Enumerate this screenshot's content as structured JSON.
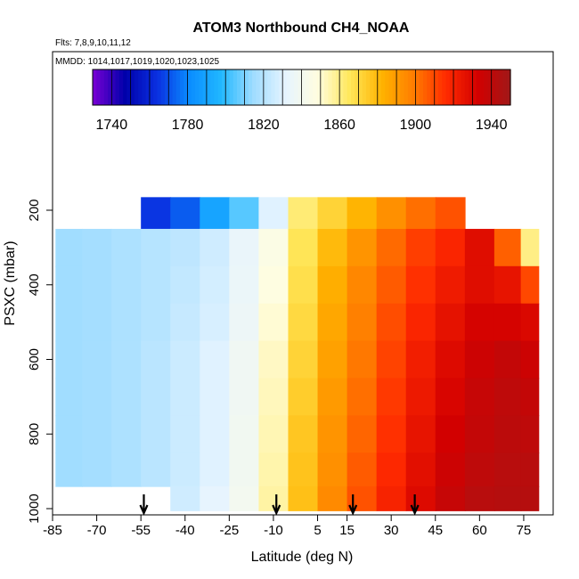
{
  "chart_data": {
    "type": "heatmap",
    "title": "ATOM3 Northbound CH4_NOAA",
    "annotations": [
      "Flts: 7,8,9,10,11,12",
      "MMDD: 1014,1017,1019,1020,1023,1025"
    ],
    "xlabel": "Latitude (deg N)",
    "ylabel": "PSXC (mbar)",
    "xlim": [
      -85,
      85
    ],
    "ylim": [
      1000,
      100
    ],
    "x_ticks": [
      -85,
      -70,
      -55,
      -40,
      -25,
      -10,
      5,
      15,
      30,
      45,
      60,
      75
    ],
    "y_ticks": [
      200,
      400,
      600,
      800,
      1000
    ],
    "colorbar": {
      "ticks": [
        1740,
        1780,
        1820,
        1860,
        1900,
        1940
      ],
      "range": [
        1730,
        1950
      ],
      "colors": [
        "#7a00d4",
        "#0000aa",
        "#0a2fe0",
        "#0a8cff",
        "#21b8ff",
        "#9fdcff",
        "#e6f4ff",
        "#fffde0",
        "#ffe75a",
        "#ffb300",
        "#ff7c00",
        "#ff2a00",
        "#d20000",
        "#a01818"
      ]
    },
    "flight_markers_lat": [
      -54,
      -9,
      17,
      38
    ],
    "latitude_bins": [
      -80,
      -70,
      -60,
      -50,
      -40,
      -30,
      -20,
      -10,
      0,
      10,
      20,
      30,
      40,
      50,
      60,
      70,
      78
    ],
    "pressure_levels": [
      {
        "p": 200,
        "ch4": [
          null,
          null,
          null,
          1765,
          1772,
          1790,
          1805,
          1830,
          1862,
          1872,
          1882,
          1893,
          1902,
          1908,
          null,
          null,
          null
        ]
      },
      {
        "p": 300,
        "ch4": [
          1815,
          1816,
          1818,
          1820,
          1822,
          1826,
          1834,
          1846,
          1866,
          1880,
          1892,
          1903,
          1912,
          1918,
          1928,
          1905,
          1860
        ]
      },
      {
        "p": 400,
        "ch4": [
          1815,
          1816,
          1818,
          1820,
          1823,
          1827,
          1835,
          1848,
          1868,
          1884,
          1896,
          1906,
          1915,
          1922,
          1928,
          1925,
          1910
        ]
      },
      {
        "p": 500,
        "ch4": [
          1815,
          1816,
          1818,
          1820,
          1824,
          1828,
          1836,
          1850,
          1870,
          1886,
          1898,
          1909,
          1918,
          1926,
          1932,
          1932,
          1930
        ]
      },
      {
        "p": 600,
        "ch4": [
          1815,
          1816,
          1818,
          1821,
          1825,
          1830,
          1838,
          1852,
          1872,
          1888,
          1900,
          1911,
          1921,
          1929,
          1935,
          1938,
          1935
        ]
      },
      {
        "p": 700,
        "ch4": [
          1815,
          1816,
          1818,
          1821,
          1825,
          1830,
          1838,
          1853,
          1874,
          1890,
          1902,
          1913,
          1923,
          1931,
          1937,
          1940,
          1938
        ]
      },
      {
        "p": 800,
        "ch4": [
          1815,
          1816,
          1818,
          1821,
          1825,
          1830,
          1839,
          1854,
          1876,
          1892,
          1904,
          1915,
          1925,
          1933,
          1938,
          1941,
          1940
        ]
      },
      {
        "p": 900,
        "ch4": [
          1815,
          1816,
          1818,
          1821,
          1825,
          1830,
          1839,
          1855,
          1877,
          1893,
          1906,
          1917,
          1927,
          1935,
          1940,
          1942,
          1942
        ]
      },
      {
        "p": 980,
        "ch4": [
          null,
          null,
          null,
          null,
          1826,
          1832,
          1840,
          1856,
          1878,
          1895,
          1908,
          1919,
          1929,
          1937,
          1942,
          1943,
          1943
        ]
      }
    ]
  }
}
